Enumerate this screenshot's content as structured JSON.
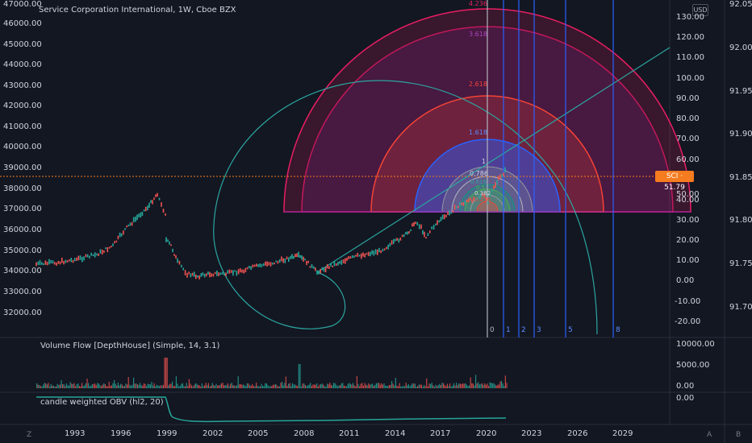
{
  "header": {
    "title": "Service Corporation International, 1W, Cboe BZX",
    "currency_button": "USD",
    "price_tag": "SCI · 51.79"
  },
  "left_axis_labels": [
    "47000.00",
    "46000.00",
    "45000.00",
    "44000.00",
    "43000.00",
    "42000.00",
    "41000.00",
    "40000.00",
    "39000.00",
    "38000.00",
    "37000.00",
    "36000.00",
    "35000.00",
    "34000.00",
    "33000.00",
    "32000.00"
  ],
  "price_axis_labels": [
    "130.00",
    "120.00",
    "110.00",
    "100.00",
    "90.00",
    "80.00",
    "70.00",
    "60.00",
    "50.00",
    "40.00",
    "30.00",
    "20.00",
    "10.00",
    "0.00",
    "-10.00",
    "-20.00"
  ],
  "far_right_axis_labels": [
    "92.05",
    "92.00",
    "91.95",
    "91.90",
    "91.85",
    "91.80",
    "91.75",
    "91.70"
  ],
  "fib_arc_labels": [
    "4.236",
    "3.618",
    "2.618",
    "1.618",
    "1",
    "0.786",
    "0.618",
    "0.5",
    "0.382",
    "0.236"
  ],
  "fib_time_labels": [
    "0",
    "1",
    "2",
    "3",
    "5",
    "8"
  ],
  "indicators": {
    "volume_flow": {
      "title": "Volume Flow [DepthHouse] (Simple, 14, 3.1)",
      "axis_labels": [
        "10000.00",
        "5000.00",
        "0.00"
      ]
    },
    "obv": {
      "title": "candle weighted OBV (hl2, 20)",
      "axis_labels": [
        "0.00"
      ]
    }
  },
  "time_axis_labels": [
    "1993",
    "1996",
    "1999",
    "2002",
    "2005",
    "2008",
    "2011",
    "2014",
    "2017",
    "2020",
    "2023",
    "2026",
    "2029"
  ],
  "bottom_corner_labels": {
    "left": "Z",
    "right_a": "A",
    "right_b": "B"
  },
  "colors": {
    "background": "#131722",
    "candle_up": "#26a69a",
    "candle_down": "#ef5350",
    "fib_line": "#2ba6a0",
    "price_tag": "#f57c1f",
    "arc_4236": "#e91e63",
    "arc_3618": "#9c27b0",
    "arc_2618": "#f44336",
    "arc_1618": "#2962ff",
    "time_zone": "#2962ff"
  }
}
